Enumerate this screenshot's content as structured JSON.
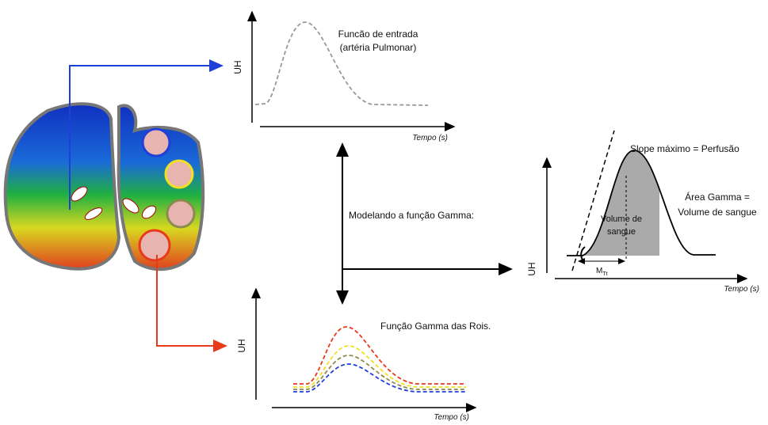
{
  "input_curve": {
    "title": [
      "Funcão de entrada",
      "(artéria Pulmonar)"
    ],
    "y_label": "UH",
    "x_label": "Tempo (s)"
  },
  "model": {
    "label": "Modelando a função Gamma:",
    "y_label": "UH",
    "x_label": "Tempo (s)",
    "slope_label": "Slope máximo = Perfusão",
    "area_label": [
      "Área Gamma =",
      "Volume de sangue"
    ],
    "fill_label": [
      "Volume de",
      "sangue"
    ],
    "mtt_label": "M",
    "mtt_subscript": "Tt"
  },
  "rois_curve": {
    "title": "Função Gamma das Rois.",
    "y_label": "UH",
    "x_label": "Tempo (s)"
  }
}
